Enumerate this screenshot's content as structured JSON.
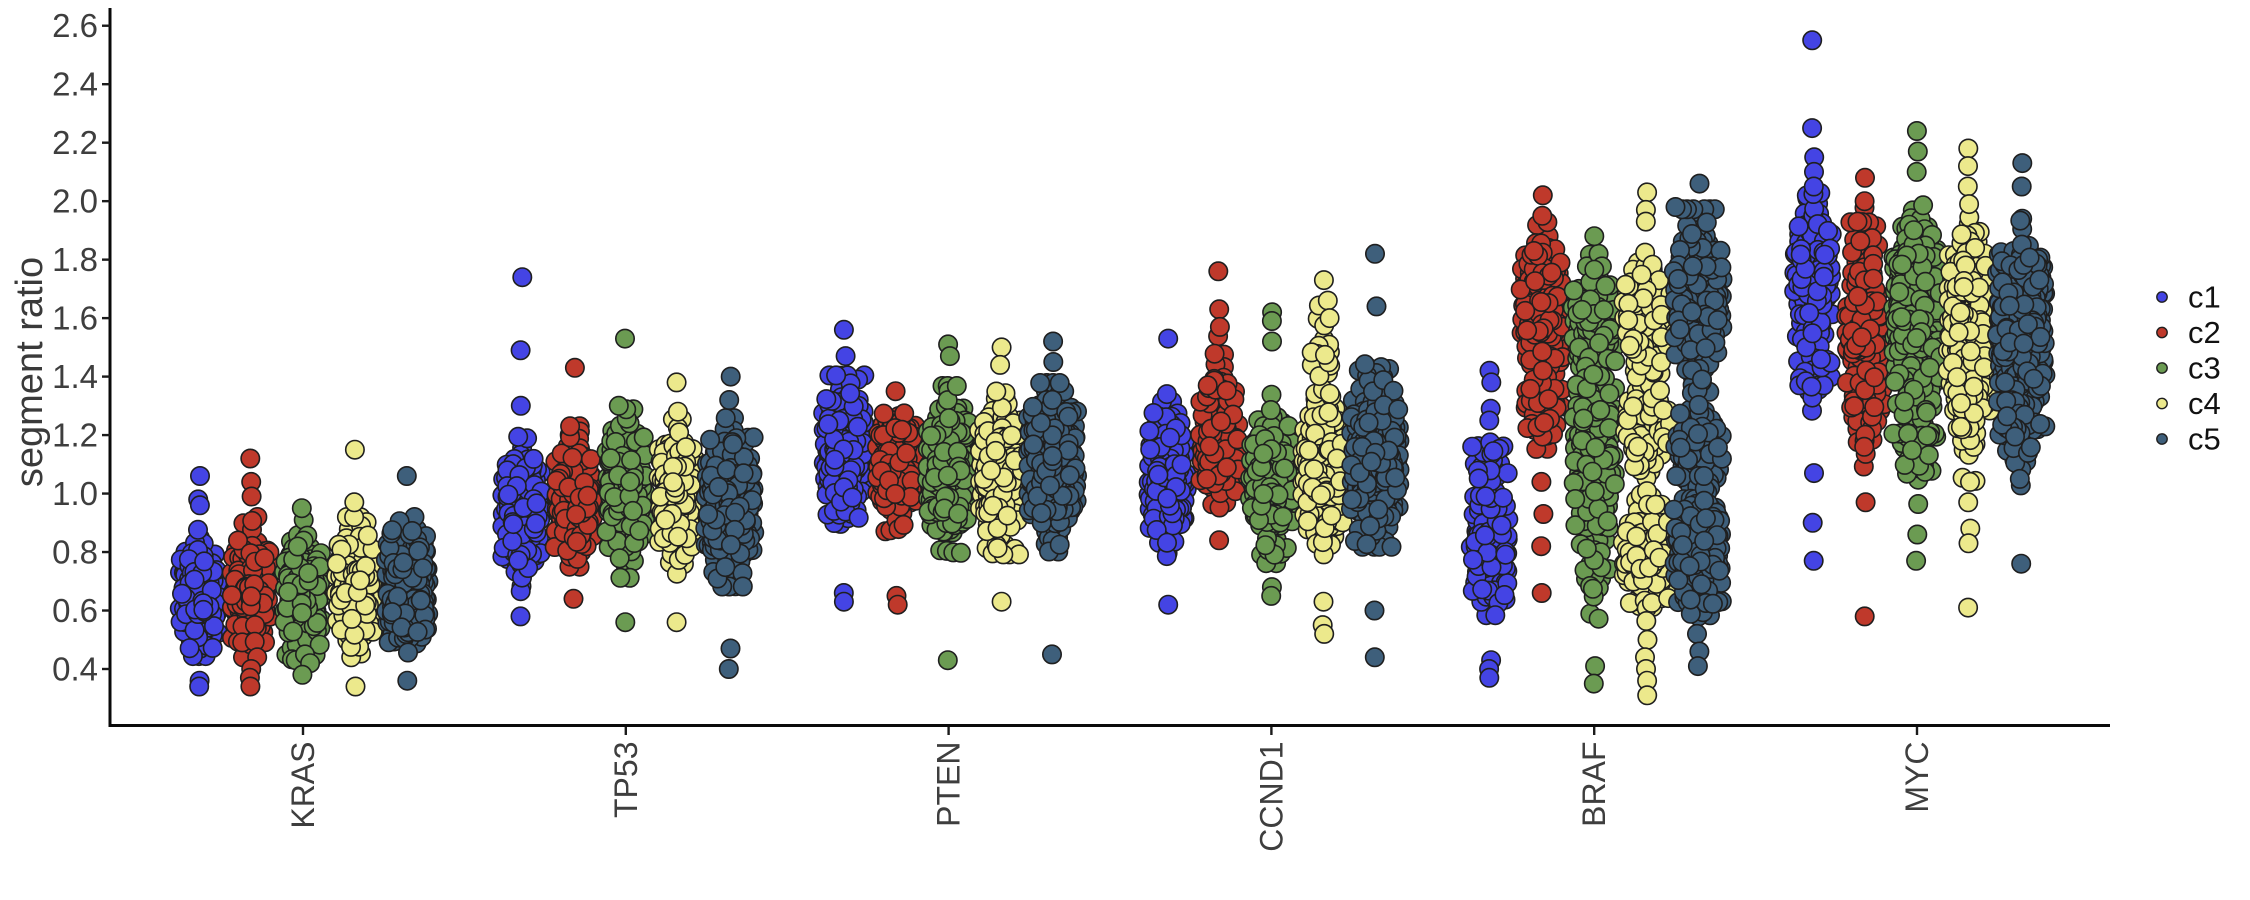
{
  "figure": {
    "background": "#ffffff",
    "ylabel": "segment ratio"
  },
  "chart_data": {
    "type": "beeswarm",
    "title": "",
    "xlabel": "",
    "ylabel": "segment ratio",
    "categories": [
      "KRAS",
      "TP53",
      "PTEN",
      "CCND1",
      "BRAF",
      "MYC"
    ],
    "y_ticks": [
      "0.4",
      "0.6",
      "0.8",
      "1.0",
      "1.2",
      "1.4",
      "1.6",
      "1.8",
      "2.0",
      "2.2",
      "2.4",
      "2.6"
    ],
    "ylim": [
      0.21,
      2.66
    ],
    "grid": false,
    "axis_color": "#0a0a0a",
    "tick_label_color": "#3e3e3e",
    "point_outline_color": "#1f1f1f",
    "legend": {
      "position": "right",
      "items": [
        {
          "label": "c1",
          "color": "#4444e4"
        },
        {
          "label": "c2",
          "color": "#bf392b"
        },
        {
          "label": "c3",
          "color": "#6b9b52"
        },
        {
          "label": "c4",
          "color": "#ece98c"
        },
        {
          "label": "c5",
          "color": "#3e5f7b"
        }
      ]
    },
    "distributions": [
      {
        "gene": "KRAS",
        "cluster": "c1",
        "components": [
          [
            0.66,
            0.09,
            150
          ]
        ],
        "outliers_high": [
          1.06,
          0.98,
          0.96
        ],
        "outliers_low": [
          0.36,
          0.34
        ]
      },
      {
        "gene": "KRAS",
        "cluster": "c2",
        "components": [
          [
            0.68,
            0.1,
            160
          ]
        ],
        "outliers_high": [
          1.12,
          1.04,
          0.99
        ],
        "outliers_low": [
          0.44,
          0.4,
          0.37,
          0.34
        ]
      },
      {
        "gene": "KRAS",
        "cluster": "c3",
        "components": [
          [
            0.67,
            0.1,
            170
          ]
        ],
        "outliers_high": [
          0.95
        ],
        "outliers_low": [
          0.45,
          0.42,
          0.38
        ]
      },
      {
        "gene": "KRAS",
        "cluster": "c4",
        "components": [
          [
            0.68,
            0.1,
            165
          ]
        ],
        "outliers_high": [
          1.15,
          0.97
        ],
        "outliers_low": [
          0.34
        ]
      },
      {
        "gene": "KRAS",
        "cluster": "c5",
        "components": [
          [
            0.68,
            0.1,
            280
          ]
        ],
        "outliers_high": [
          1.06
        ],
        "outliers_low": [
          0.36
        ]
      },
      {
        "gene": "TP53",
        "cluster": "c1",
        "components": [
          [
            0.93,
            0.11,
            180
          ]
        ],
        "outliers_high": [
          1.74,
          1.49,
          1.3
        ],
        "outliers_low": [
          0.58
        ]
      },
      {
        "gene": "TP53",
        "cluster": "c2",
        "components": [
          [
            0.99,
            0.1,
            180
          ]
        ],
        "outliers_high": [
          1.43
        ],
        "outliers_low": [
          0.64
        ]
      },
      {
        "gene": "TP53",
        "cluster": "c3",
        "components": [
          [
            1.0,
            0.12,
            190
          ]
        ],
        "outliers_high": [
          1.53,
          1.3
        ],
        "outliers_low": [
          0.56
        ]
      },
      {
        "gene": "TP53",
        "cluster": "c4",
        "components": [
          [
            0.99,
            0.11,
            180
          ]
        ],
        "outliers_high": [
          1.38,
          1.28
        ],
        "outliers_low": [
          0.56
        ]
      },
      {
        "gene": "TP53",
        "cluster": "c5",
        "components": [
          [
            0.97,
            0.12,
            300
          ]
        ],
        "outliers_high": [
          1.4,
          1.32
        ],
        "outliers_low": [
          0.47,
          0.4
        ]
      },
      {
        "gene": "PTEN",
        "cluster": "c1",
        "components": [
          [
            1.14,
            0.11,
            200
          ]
        ],
        "outliers_high": [
          1.56,
          1.47
        ],
        "outliers_low": [
          0.66,
          0.63
        ]
      },
      {
        "gene": "PTEN",
        "cluster": "c2",
        "components": [
          [
            1.09,
            0.1,
            190
          ]
        ],
        "outliers_high": [
          1.35
        ],
        "outliers_low": [
          0.65,
          0.62
        ]
      },
      {
        "gene": "PTEN",
        "cluster": "c3",
        "components": [
          [
            1.08,
            0.12,
            200
          ]
        ],
        "outliers_high": [
          1.51,
          1.47
        ],
        "outliers_low": [
          0.43
        ]
      },
      {
        "gene": "PTEN",
        "cluster": "c4",
        "components": [
          [
            1.08,
            0.12,
            200
          ]
        ],
        "outliers_high": [
          1.5,
          1.44
        ],
        "outliers_low": [
          0.63
        ]
      },
      {
        "gene": "PTEN",
        "cluster": "c5",
        "components": [
          [
            1.09,
            0.12,
            330
          ]
        ],
        "outliers_high": [
          1.52,
          1.45
        ],
        "outliers_low": [
          0.45
        ]
      },
      {
        "gene": "CCND1",
        "cluster": "c1",
        "components": [
          [
            1.05,
            0.11,
            190
          ]
        ],
        "outliers_high": [
          1.53,
          1.34
        ],
        "outliers_low": [
          0.62
        ]
      },
      {
        "gene": "CCND1",
        "cluster": "c2",
        "components": [
          [
            1.13,
            0.08,
            165
          ],
          [
            1.38,
            0.07,
            25
          ]
        ],
        "outliers_high": [
          1.76,
          1.63,
          1.57
        ],
        "outliers_low": [
          0.84
        ]
      },
      {
        "gene": "CCND1",
        "cluster": "c3",
        "components": [
          [
            1.05,
            0.12,
            210
          ]
        ],
        "outliers_high": [
          1.62,
          1.59,
          1.52
        ],
        "outliers_low": [
          0.68,
          0.65
        ]
      },
      {
        "gene": "CCND1",
        "cluster": "c4",
        "components": [
          [
            1.08,
            0.12,
            200
          ],
          [
            1.45,
            0.1,
            22
          ]
        ],
        "outliers_high": [
          1.73,
          1.66,
          1.6
        ],
        "outliers_low": [
          0.63,
          0.55,
          0.52
        ]
      },
      {
        "gene": "CCND1",
        "cluster": "c5",
        "components": [
          [
            1.13,
            0.13,
            340
          ]
        ],
        "outliers_high": [
          1.82,
          1.64
        ],
        "outliers_low": [
          0.6,
          0.44
        ]
      },
      {
        "gene": "BRAF",
        "cluster": "c1",
        "components": [
          [
            0.8,
            0.09,
            130
          ],
          [
            1.05,
            0.1,
            40
          ]
        ],
        "outliers_high": [
          1.42,
          1.38,
          1.25
        ],
        "outliers_low": [
          0.43,
          0.4,
          0.37
        ]
      },
      {
        "gene": "BRAF",
        "cluster": "c2",
        "components": [
          [
            1.64,
            0.12,
            190
          ],
          [
            1.3,
            0.08,
            45
          ]
        ],
        "outliers_high": [
          2.02,
          1.95
        ],
        "outliers_low": [
          1.04,
          0.93,
          0.82,
          0.66
        ]
      },
      {
        "gene": "BRAF",
        "cluster": "c3",
        "components": [
          [
            1.58,
            0.1,
            110
          ],
          [
            1.1,
            0.22,
            180
          ]
        ],
        "outliers_high": [
          1.88
        ],
        "outliers_low": [
          0.41,
          0.35
        ]
      },
      {
        "gene": "BRAF",
        "cluster": "c4",
        "components": [
          [
            0.78,
            0.09,
            150
          ],
          [
            1.25,
            0.12,
            80
          ],
          [
            1.62,
            0.12,
            90
          ]
        ],
        "outliers_high": [
          2.03,
          1.97,
          1.93
        ],
        "outliers_low": [
          0.5,
          0.44,
          0.4,
          0.36,
          0.31
        ]
      },
      {
        "gene": "BRAF",
        "cluster": "c5",
        "components": [
          [
            1.66,
            0.13,
            200
          ],
          [
            1.15,
            0.1,
            80
          ],
          [
            0.82,
            0.1,
            200
          ]
        ],
        "outliers_high": [
          2.06,
          1.98
        ],
        "outliers_low": [
          0.52,
          0.46,
          0.41
        ]
      },
      {
        "gene": "MYC",
        "cluster": "c1",
        "components": [
          [
            1.74,
            0.12,
            150
          ],
          [
            1.38,
            0.07,
            30
          ]
        ],
        "outliers_high": [
          2.55,
          2.25,
          2.15,
          2.1,
          2.05
        ],
        "outliers_low": [
          1.07,
          0.9,
          0.77
        ]
      },
      {
        "gene": "MYC",
        "cluster": "c2",
        "components": [
          [
            1.52,
            0.06,
            75
          ],
          [
            1.72,
            0.12,
            55
          ],
          [
            1.3,
            0.1,
            50
          ]
        ],
        "outliers_high": [
          2.08,
          2.0
        ],
        "outliers_low": [
          0.97,
          0.58
        ]
      },
      {
        "gene": "MYC",
        "cluster": "c3",
        "components": [
          [
            1.65,
            0.14,
            250
          ],
          [
            1.25,
            0.12,
            70
          ]
        ],
        "outliers_high": [
          2.24,
          2.17,
          2.1
        ],
        "outliers_low": [
          0.86,
          0.77
        ]
      },
      {
        "gene": "MYC",
        "cluster": "c4",
        "components": [
          [
            1.62,
            0.14,
            230
          ],
          [
            1.3,
            0.12,
            40
          ]
        ],
        "outliers_high": [
          2.18,
          2.12,
          2.05,
          1.99
        ],
        "outliers_low": [
          1.04,
          0.97,
          0.88,
          0.83,
          0.61
        ]
      },
      {
        "gene": "MYC",
        "cluster": "c5",
        "components": [
          [
            1.58,
            0.15,
            360
          ],
          [
            1.22,
            0.08,
            40
          ]
        ],
        "outliers_high": [
          2.13,
          2.05
        ],
        "outliers_low": [
          1.05,
          0.76
        ]
      }
    ]
  }
}
